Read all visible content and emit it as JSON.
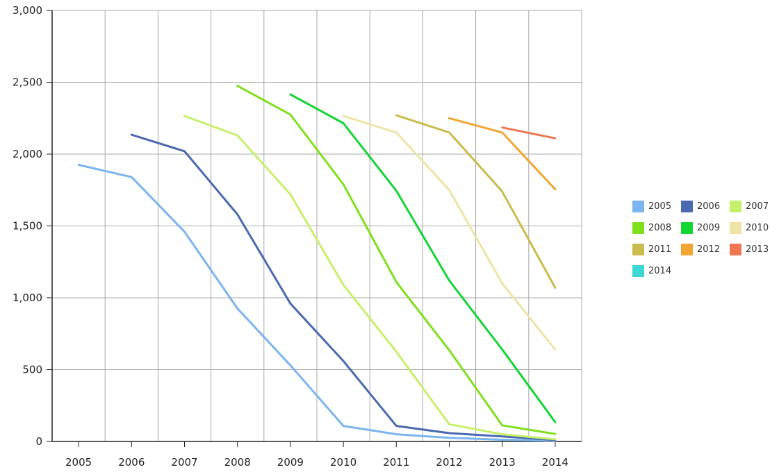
{
  "chart_data": {
    "type": "line",
    "x_categories": [
      "2005",
      "2006",
      "2007",
      "2008",
      "2009",
      "2010",
      "2011",
      "2012",
      "2013",
      "2014"
    ],
    "y_ticks": [
      "0",
      "500",
      "1,000",
      "1,500",
      "2,000",
      "2,500",
      "3,000"
    ],
    "ylim": [
      0,
      3000
    ],
    "grid": true,
    "legend_position": "right",
    "series": [
      {
        "name": "2005",
        "color": "#7cb4ef",
        "values": [
          1925,
          1840,
          1460,
          925,
          530,
          108,
          50,
          25,
          12,
          5
        ]
      },
      {
        "name": "2006",
        "color": "#4a69b0",
        "values": [
          null,
          2135,
          2020,
          1580,
          960,
          560,
          108,
          58,
          35,
          10
        ]
      },
      {
        "name": "2007",
        "color": "#c6f06a",
        "values": [
          null,
          null,
          2265,
          2130,
          1720,
          1090,
          625,
          120,
          50,
          15
        ]
      },
      {
        "name": "2008",
        "color": "#7fe01c",
        "values": [
          null,
          null,
          null,
          2475,
          2275,
          1790,
          1110,
          635,
          112,
          52
        ]
      },
      {
        "name": "2009",
        "color": "#12d632",
        "values": [
          null,
          null,
          null,
          null,
          2415,
          2215,
          1745,
          1120,
          640,
          135
        ]
      },
      {
        "name": "2010",
        "color": "#efe4a6",
        "values": [
          null,
          null,
          null,
          null,
          null,
          2265,
          2150,
          1750,
          1100,
          640
        ]
      },
      {
        "name": "2011",
        "color": "#c9bb4c",
        "values": [
          null,
          null,
          null,
          null,
          null,
          null,
          2270,
          2150,
          1740,
          1070
        ]
      },
      {
        "name": "2012",
        "color": "#f4a532",
        "values": [
          null,
          null,
          null,
          null,
          null,
          null,
          null,
          2250,
          2150,
          1755
        ]
      },
      {
        "name": "2013",
        "color": "#f07651",
        "values": [
          null,
          null,
          null,
          null,
          null,
          null,
          null,
          null,
          2185,
          2110
        ]
      },
      {
        "name": "2014",
        "color": "#3dd8d1",
        "values": [
          null,
          null,
          null,
          null,
          null,
          null,
          null,
          null,
          null,
          5
        ]
      }
    ]
  }
}
